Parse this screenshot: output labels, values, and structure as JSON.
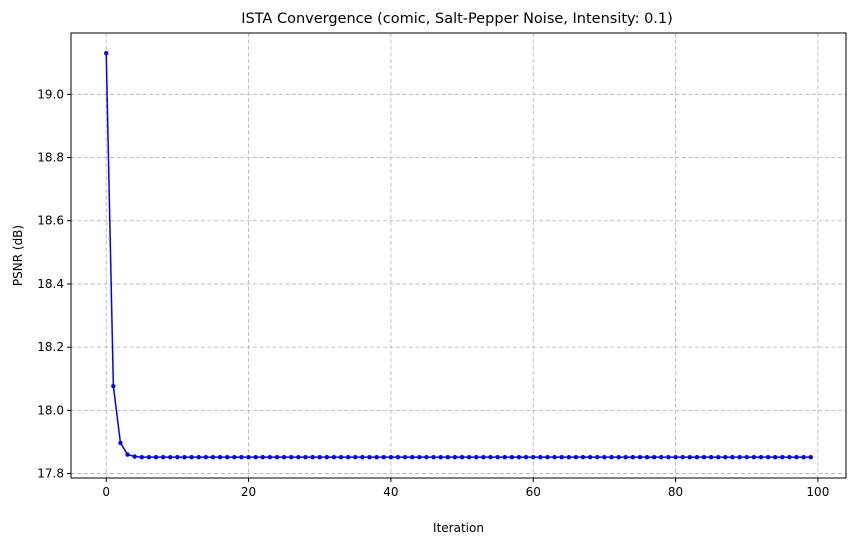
{
  "chart_data": {
    "type": "line",
    "title": "ISTA Convergence (comic, Salt-Pepper Noise, Intensity: 0.1)",
    "xlabel": "Iteration",
    "ylabel": "PSNR (dB)",
    "xlim": [
      -4.95,
      103.95
    ],
    "ylim": [
      17.786,
      19.194
    ],
    "xticks": [
      0,
      20,
      40,
      60,
      80,
      100
    ],
    "yticks": [
      17.8,
      18.0,
      18.2,
      18.4,
      18.6,
      18.8,
      19.0
    ],
    "grid": true,
    "series": [
      {
        "color": "#0000ff",
        "marker": "circle",
        "x_start": 0,
        "x_step": 1,
        "values": [
          19.13,
          18.077,
          17.897,
          17.86,
          17.854,
          17.852,
          17.852,
          17.852,
          17.852,
          17.852,
          17.852,
          17.852,
          17.852,
          17.852,
          17.852,
          17.852,
          17.852,
          17.852,
          17.852,
          17.852,
          17.852,
          17.852,
          17.852,
          17.852,
          17.852,
          17.852,
          17.852,
          17.852,
          17.852,
          17.852,
          17.852,
          17.852,
          17.852,
          17.852,
          17.852,
          17.852,
          17.852,
          17.852,
          17.852,
          17.852,
          17.852,
          17.852,
          17.852,
          17.852,
          17.852,
          17.852,
          17.852,
          17.852,
          17.852,
          17.852,
          17.852,
          17.852,
          17.852,
          17.852,
          17.852,
          17.852,
          17.852,
          17.852,
          17.852,
          17.852,
          17.852,
          17.852,
          17.852,
          17.852,
          17.852,
          17.852,
          17.852,
          17.852,
          17.852,
          17.852,
          17.852,
          17.852,
          17.852,
          17.852,
          17.852,
          17.852,
          17.852,
          17.852,
          17.852,
          17.852,
          17.852,
          17.852,
          17.852,
          17.852,
          17.852,
          17.852,
          17.852,
          17.852,
          17.852,
          17.852,
          17.852,
          17.852,
          17.852,
          17.852,
          17.852,
          17.852,
          17.852,
          17.852,
          17.852,
          17.852
        ]
      }
    ]
  }
}
